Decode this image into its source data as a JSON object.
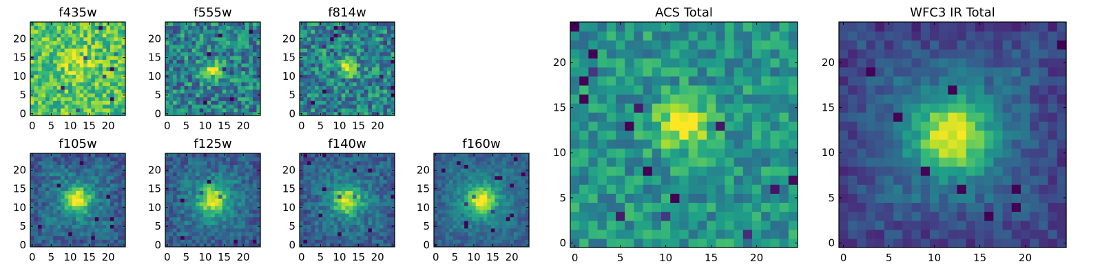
{
  "chart_data": [
    {
      "type": "heatmap",
      "title": "f435w",
      "x_ticks": [
        0,
        5,
        10,
        15,
        20
      ],
      "y_ticks": [
        0,
        5,
        10,
        15,
        20
      ],
      "grid_size": 25,
      "peak_x": 12,
      "peak_y": 13,
      "colormap": "viridis",
      "grid": false
    },
    {
      "type": "heatmap",
      "title": "f555w",
      "x_ticks": [
        0,
        5,
        10,
        15,
        20
      ],
      "y_ticks": [
        0,
        5,
        10,
        15,
        20
      ],
      "grid_size": 25,
      "peak_x": 12,
      "peak_y": 12,
      "colormap": "viridis",
      "grid": false
    },
    {
      "type": "heatmap",
      "title": "f814w",
      "x_ticks": [
        0,
        5,
        10,
        15,
        20
      ],
      "y_ticks": [
        0,
        5,
        10,
        15,
        20
      ],
      "grid_size": 25,
      "peak_x": 12,
      "peak_y": 12,
      "colormap": "viridis",
      "grid": false
    },
    {
      "type": "heatmap",
      "title": "f105w",
      "x_ticks": [
        0,
        5,
        10,
        15,
        20
      ],
      "y_ticks": [
        0,
        5,
        10,
        15,
        20
      ],
      "grid_size": 25,
      "peak_x": 12,
      "peak_y": 12,
      "colormap": "viridis",
      "grid": false
    },
    {
      "type": "heatmap",
      "title": "f125w",
      "x_ticks": [
        0,
        5,
        10,
        15,
        20
      ],
      "y_ticks": [
        0,
        5,
        10,
        15,
        20
      ],
      "grid_size": 25,
      "peak_x": 12,
      "peak_y": 12,
      "colormap": "viridis",
      "grid": false
    },
    {
      "type": "heatmap",
      "title": "f140w",
      "x_ticks": [
        0,
        5,
        10,
        15,
        20
      ],
      "y_ticks": [
        0,
        5,
        10,
        15,
        20
      ],
      "grid_size": 25,
      "peak_x": 12,
      "peak_y": 12,
      "colormap": "viridis",
      "grid": false
    },
    {
      "type": "heatmap",
      "title": "f160w",
      "x_ticks": [
        0,
        5,
        10,
        15,
        20
      ],
      "y_ticks": [
        0,
        5,
        10,
        15,
        20
      ],
      "grid_size": 25,
      "peak_x": 12,
      "peak_y": 12,
      "colormap": "viridis",
      "grid": false
    },
    {
      "type": "heatmap",
      "title": "ACS Total",
      "x_ticks": [
        0,
        5,
        10,
        15,
        20
      ],
      "y_ticks": [
        0,
        5,
        10,
        15,
        20
      ],
      "grid_size": 25,
      "peak_x": 12,
      "peak_y": 13,
      "colormap": "viridis",
      "grid": false
    },
    {
      "type": "heatmap",
      "title": "WFC3 IR Total",
      "x_ticks": [
        0,
        5,
        10,
        15,
        20
      ],
      "y_ticks": [
        0,
        5,
        10,
        15,
        20
      ],
      "grid_size": 25,
      "peak_x": 12,
      "peak_y": 12,
      "colormap": "viridis",
      "grid": false
    }
  ]
}
